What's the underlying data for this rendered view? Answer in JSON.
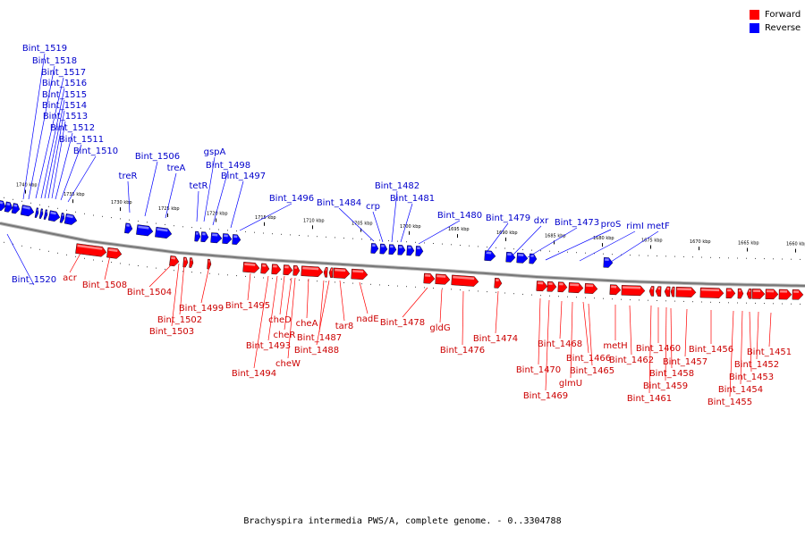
{
  "legend": {
    "forward": {
      "label": "Forward",
      "color": "#ff0000"
    },
    "reverse": {
      "label": "Reverse",
      "color": "#0000ff"
    }
  },
  "caption": "Brachyspira intermedia PWS/A, complete genome. - 0..3304788",
  "colors": {
    "forward": "#ff0000",
    "forward_text": "#cc0000",
    "reverse": "#0000ff",
    "reverse_text": "#0000cc",
    "backbone": "#777777",
    "ticks": "#000000"
  },
  "kbp_labels": [
    "1740 kbp",
    "1735 kbp",
    "1730 kbp",
    "1725 kbp",
    "1720 kbp",
    "1715 kbp",
    "1710 kbp",
    "1705 kbp",
    "1700 kbp",
    "1695 kbp",
    "1690 kbp",
    "1685 kbp",
    "1680 kbp",
    "1675 kbp",
    "1670 kbp",
    "1665 kbp",
    "1660 kbp"
  ],
  "reverse_genes": [
    "Bint_1520",
    "Bint_1519",
    "Bint_1518",
    "Bint_1517",
    "Bint_1516",
    "Bint_1515",
    "Bint_1514",
    "Bint_1513",
    "Bint_1512",
    "Bint_1511",
    "Bint_1510",
    "treR",
    "Bint_1506",
    "treA",
    "tetR",
    "gspA",
    "Bint_1498",
    "Bint_1497",
    "Bint_1496",
    "Bint_1484",
    "crp",
    "Bint_1482",
    "Bint_1481",
    "Bint_1480",
    "Bint_1479",
    "dxr",
    "Bint_1473",
    "proS",
    "rimI",
    "metF"
  ],
  "forward_genes": [
    "acr",
    "Bint_1508",
    "Bint_1504",
    "Bint_1502",
    "Bint_1503",
    "Bint_1499",
    "Bint_1495",
    "Bint_1494",
    "Bint_1493",
    "cheD",
    "cheR",
    "cheW",
    "cheA",
    "Bint_1487",
    "Bint_1488",
    "tar8",
    "nadE",
    "Bint_1478",
    "gldG",
    "Bint_1476",
    "Bint_1474",
    "Bint_1470",
    "Bint_1469",
    "Bint_1468",
    "glmU",
    "Bint_1466",
    "Bint_1465",
    "metH",
    "Bint_1462",
    "Bint_1461",
    "Bint_1460",
    "Bint_1459",
    "Bint_1458",
    "Bint_1457",
    "Bint_1456",
    "Bint_1455",
    "Bint_1454",
    "Bint_1453",
    "Bint_1452",
    "Bint_1451"
  ]
}
